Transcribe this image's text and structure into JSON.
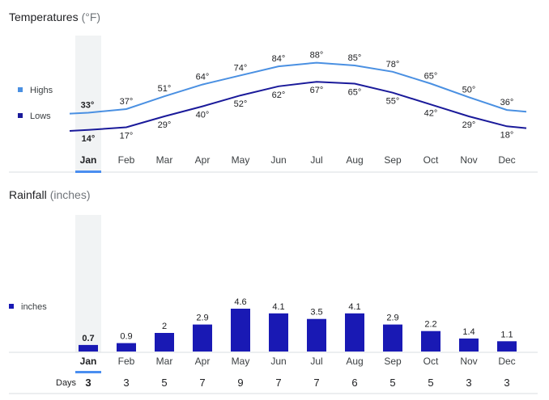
{
  "colors": {
    "highs": "#4a90e2",
    "lows": "#1a1a9a",
    "rain": "#1919b4",
    "highlight": "#f1f3f4",
    "selected_underline": "#4a8ef0",
    "axis": "#dadce0"
  },
  "selected_month": "Jan",
  "chart_data": [
    {
      "type": "line",
      "title": "Temperatures",
      "unit": "(°F)",
      "categories": [
        "Jan",
        "Feb",
        "Mar",
        "Apr",
        "May",
        "Jun",
        "Jul",
        "Aug",
        "Sep",
        "Oct",
        "Nov",
        "Dec"
      ],
      "series": [
        {
          "name": "Highs",
          "values": [
            33,
            37,
            51,
            64,
            74,
            84,
            88,
            85,
            78,
            65,
            50,
            36
          ],
          "labels": [
            "33°",
            "37°",
            "51°",
            "64°",
            "74°",
            "84°",
            "88°",
            "85°",
            "78°",
            "65°",
            "50°",
            "36°"
          ]
        },
        {
          "name": "Lows",
          "values": [
            14,
            17,
            29,
            40,
            52,
            62,
            67,
            65,
            55,
            42,
            29,
            18
          ],
          "labels": [
            "14°",
            "17°",
            "29°",
            "40°",
            "52°",
            "62°",
            "67°",
            "65°",
            "55°",
            "42°",
            "29°",
            "18°"
          ]
        }
      ],
      "ylim": [
        10,
        90
      ]
    },
    {
      "type": "bar",
      "title": "Rainfall",
      "unit": "(inches)",
      "categories": [
        "Jan",
        "Feb",
        "Mar",
        "Apr",
        "May",
        "Jun",
        "Jul",
        "Aug",
        "Sep",
        "Oct",
        "Nov",
        "Dec"
      ],
      "series": [
        {
          "name": "inches",
          "values": [
            0.7,
            0.9,
            2,
            2.9,
            4.6,
            4.1,
            3.5,
            4.1,
            2.9,
            2.2,
            1.4,
            1.1
          ],
          "labels": [
            "0.7",
            "0.9",
            "2",
            "2.9",
            "4.6",
            "4.1",
            "3.5",
            "4.1",
            "2.9",
            "2.2",
            "1.4",
            "1.1"
          ]
        }
      ],
      "ylim": [
        0,
        4.6
      ],
      "days_label": "Days",
      "days": [
        3,
        3,
        5,
        7,
        9,
        7,
        7,
        6,
        5,
        5,
        3,
        3
      ]
    }
  ]
}
